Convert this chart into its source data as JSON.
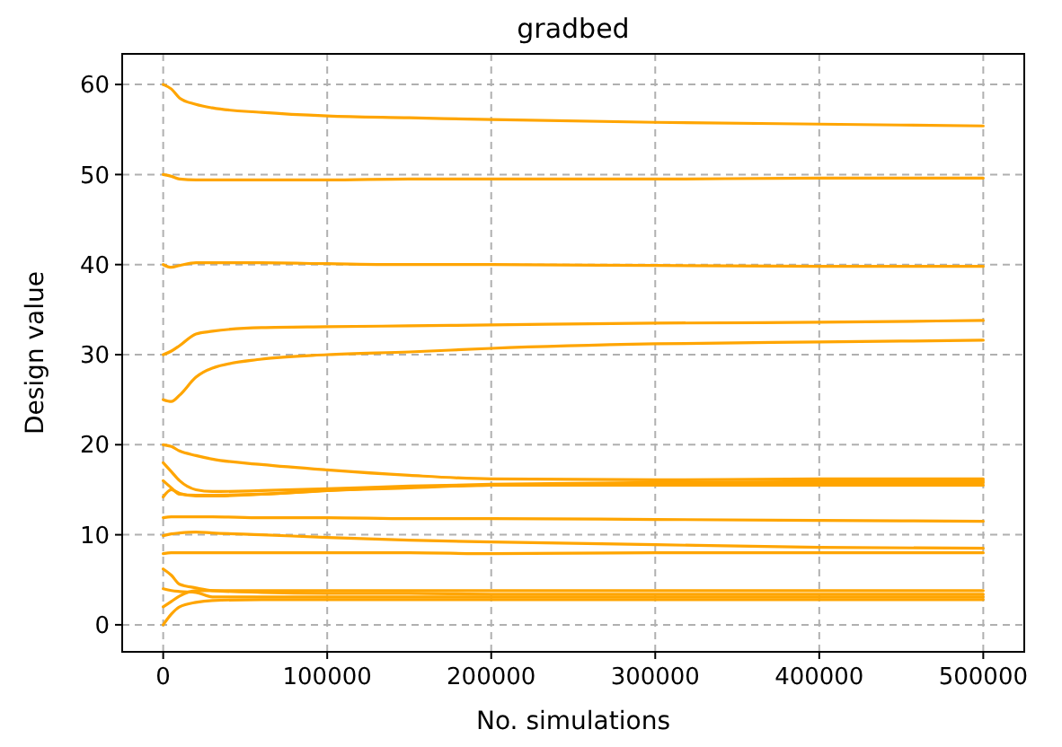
{
  "chart_data": {
    "type": "line",
    "title": "gradbed",
    "xlabel": "No. simulations",
    "ylabel": "Design value",
    "x": [
      0,
      5000,
      10000,
      20000,
      30000,
      60000,
      100000,
      150000,
      200000,
      300000,
      400000,
      500000
    ],
    "xlim": [
      -25000,
      525000
    ],
    "xticks": [
      0,
      100000,
      200000,
      300000,
      400000,
      500000
    ],
    "ylim": [
      -3,
      63.4
    ],
    "yticks": [
      0,
      10,
      20,
      30,
      40,
      50,
      60
    ],
    "grid": true,
    "line_style": "solid",
    "marker": "none",
    "series": [
      {
        "color": "#ffa500",
        "values": [
          60,
          59.5,
          58.5,
          57.8,
          57.4,
          56.9,
          56.5,
          56.3,
          56.1,
          55.8,
          55.6,
          55.4
        ]
      },
      {
        "color": "#ffa500",
        "values": [
          50,
          49.8,
          49.5,
          49.4,
          49.4,
          49.4,
          49.4,
          49.5,
          49.5,
          49.5,
          49.6,
          49.6
        ]
      },
      {
        "color": "#ffa500",
        "values": [
          40,
          39.7,
          39.9,
          40.2,
          40.2,
          40.2,
          40.1,
          40.0,
          40.0,
          39.9,
          39.8,
          39.8
        ]
      },
      {
        "color": "#ffa500",
        "values": [
          30,
          30.4,
          31,
          32.3,
          32.6,
          33,
          33.1,
          33.2,
          33.3,
          33.5,
          33.6,
          33.8
        ]
      },
      {
        "color": "#ffa500",
        "values": [
          25,
          24.8,
          25.5,
          27.5,
          28.5,
          29.5,
          30,
          30.3,
          30.7,
          31.2,
          31.4,
          31.6
        ]
      },
      {
        "color": "#ffa500",
        "values": [
          20,
          19.8,
          19.3,
          18.8,
          18.4,
          17.8,
          17.2,
          16.6,
          16.2,
          16.1,
          16.2,
          16.2
        ]
      },
      {
        "color": "#ffa500",
        "values": [
          18,
          17,
          16,
          15,
          14.8,
          14.9,
          15.1,
          15.4,
          15.6,
          15.8,
          15.9,
          16
        ]
      },
      {
        "color": "#ffa500",
        "values": [
          16,
          15.2,
          14.5,
          14.4,
          14.4,
          14.5,
          14.9,
          15.3,
          15.5,
          15.7,
          15.7,
          15.8
        ]
      },
      {
        "color": "#ffa500",
        "values": [
          14.2,
          15,
          14.6,
          14.3,
          14.3,
          14.5,
          14.9,
          15.2,
          15.5,
          15.5,
          15.5,
          15.5
        ]
      },
      {
        "color": "#ffa500",
        "values": [
          11.9,
          12,
          12,
          12,
          12,
          11.9,
          11.9,
          11.8,
          11.8,
          11.7,
          11.6,
          11.5
        ]
      },
      {
        "color": "#ffa500",
        "values": [
          9.9,
          10.1,
          10.2,
          10.3,
          10.2,
          10,
          9.7,
          9.4,
          9.2,
          8.9,
          8.6,
          8.5
        ]
      },
      {
        "color": "#ffa500",
        "values": [
          7.9,
          8,
          8,
          8,
          8,
          8,
          8,
          8,
          7.9,
          8,
          8,
          8
        ]
      },
      {
        "color": "#ffa500",
        "values": [
          6.2,
          5.5,
          4.5,
          4.1,
          3.8,
          3.6,
          3.5,
          3.5,
          3.4,
          3.4,
          3.4,
          3.4
        ]
      },
      {
        "color": "#ffa500",
        "values": [
          4,
          3.8,
          3.7,
          3.6,
          3.1,
          3.1,
          3.1,
          3.1,
          3.1,
          3.1,
          3.1,
          3.1
        ]
      },
      {
        "color": "#ffa500",
        "values": [
          2,
          2.6,
          3.2,
          3.8,
          3.8,
          3.8,
          3.8,
          3.8,
          3.8,
          3.8,
          3.8,
          3.8
        ]
      },
      {
        "color": "#ffa500",
        "values": [
          0,
          1.2,
          2,
          2.5,
          2.7,
          2.8,
          2.8,
          2.8,
          2.8,
          2.8,
          2.8,
          2.8
        ]
      }
    ]
  }
}
